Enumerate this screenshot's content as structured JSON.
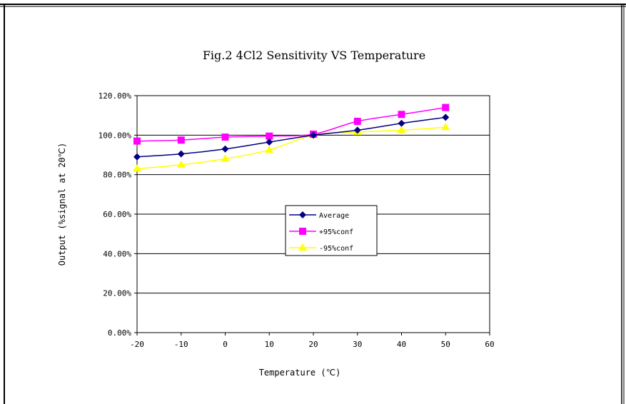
{
  "chart_data": {
    "type": "line",
    "title": "Fig.2   4Cl2 Sensitivity VS Temperature",
    "xlabel": "Temperature (℃)",
    "ylabel": "Output (%signal at 20℃)",
    "x": [
      -20,
      -10,
      0,
      10,
      20,
      30,
      40,
      50
    ],
    "xlim": [
      -20,
      60
    ],
    "xticks": [
      "-20",
      "-10",
      "0",
      "10",
      "20",
      "30",
      "40",
      "50",
      "60"
    ],
    "ylim": [
      0,
      120
    ],
    "yticks": [
      "0.00%",
      "20.00%",
      "40.00%",
      "60.00%",
      "80.00%",
      "100.00%",
      "120.00%"
    ],
    "grid": "horizontal",
    "legend_position": "center",
    "series": [
      {
        "name": "Average",
        "color": "#000080",
        "marker": "diamond",
        "values": [
          89,
          90.5,
          93,
          96.5,
          100,
          102.5,
          106,
          109
        ]
      },
      {
        "name": "+95%conf",
        "color": "#ff00ff",
        "marker": "square",
        "values": [
          97,
          97.5,
          99,
          99.5,
          100.5,
          107,
          110.5,
          114
        ]
      },
      {
        "name": "-95%conf",
        "color": "#ffff00",
        "marker": "triangle",
        "values": [
          83,
          85,
          88,
          92.5,
          100,
          101.5,
          102.5,
          104
        ]
      }
    ]
  }
}
